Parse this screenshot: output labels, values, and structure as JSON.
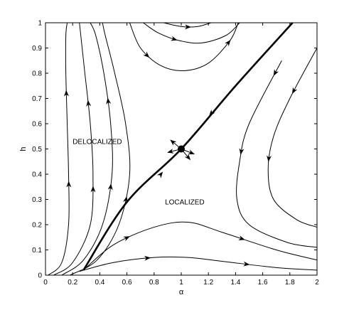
{
  "chart_data": {
    "type": "line",
    "title": "",
    "xlabel": "α",
    "ylabel": "h",
    "xlim": [
      0,
      2
    ],
    "ylim": [
      0,
      1
    ],
    "xticks": [
      "0",
      "0.2",
      "0.4",
      "0.6",
      "0.8",
      "1",
      "1.2",
      "1.4",
      "1.6",
      "1.8",
      "2"
    ],
    "yticks": [
      "0",
      "0.1",
      "0.2",
      "0.3",
      "0.4",
      "0.5",
      "0.6",
      "0.7",
      "0.8",
      "0.9",
      "1"
    ],
    "grid": false,
    "legend": "none",
    "annotations": [
      {
        "text": "DELOCALIZED",
        "x": 0.2,
        "y": 0.52
      },
      {
        "text": "LOCALIZED",
        "x": 0.88,
        "y": 0.28
      }
    ],
    "fixed_point": {
      "x": 1.0,
      "y": 0.5
    },
    "separatrix": {
      "x": [
        0.28,
        0.6,
        1.0,
        1.4,
        1.82
      ],
      "y": [
        0.02,
        0.29,
        0.5,
        0.75,
        1.0
      ]
    },
    "flow_lines": [
      {
        "x": [
          0.02,
          0.12,
          0.17,
          0.17,
          0.16,
          0.15,
          0.15,
          0.16
        ],
        "y": [
          0.0,
          0.05,
          0.2,
          0.4,
          0.6,
          0.8,
          0.95,
          1.0
        ],
        "arrows": [
          0.36,
          0.72
        ]
      },
      {
        "x": [
          0.06,
          0.2,
          0.33,
          0.35,
          0.33,
          0.29,
          0.26,
          0.25
        ],
        "y": [
          0.0,
          0.05,
          0.2,
          0.4,
          0.6,
          0.8,
          0.95,
          1.0
        ],
        "arrows": [
          0.34,
          0.68
        ]
      },
      {
        "x": [
          0.12,
          0.28,
          0.42,
          0.49,
          0.48,
          0.43,
          0.37,
          0.33
        ],
        "y": [
          0.0,
          0.06,
          0.2,
          0.4,
          0.6,
          0.8,
          0.95,
          1.0
        ],
        "arrows": [
          0.35,
          0.69
        ]
      },
      {
        "x": [
          0.18,
          0.38,
          0.54,
          0.62,
          0.59,
          0.51,
          0.44,
          0.42
        ],
        "y": [
          0.0,
          0.06,
          0.2,
          0.4,
          0.6,
          0.8,
          0.95,
          1.0
        ],
        "arrows": [
          0.3
        ]
      },
      {
        "x": [
          0.28,
          0.5,
          0.8,
          1.05,
          1.3,
          1.7,
          2.0
        ],
        "y": [
          0.02,
          0.12,
          0.19,
          0.21,
          0.17,
          0.1,
          0.06
        ],
        "arrows": [
          0.6,
          1.45
        ]
      },
      {
        "x": [
          0.25,
          0.5,
          0.8,
          1.05,
          1.3,
          1.7,
          2.0
        ],
        "y": [
          0.015,
          0.05,
          0.07,
          0.07,
          0.055,
          0.03,
          0.02
        ],
        "arrows": [
          0.75,
          1.48
        ]
      },
      {
        "x": [
          0.62,
          0.7,
          0.85,
          1.02,
          1.2,
          1.36,
          1.42
        ],
        "y": [
          1.0,
          0.9,
          0.83,
          0.81,
          0.84,
          0.93,
          1.0
        ],
        "arrows": [
          0.75,
          1.35
        ]
      },
      {
        "x": [
          0.72,
          0.83,
          0.98,
          1.15,
          1.33,
          1.43
        ],
        "y": [
          1.0,
          0.96,
          0.93,
          0.92,
          0.95,
          1.0
        ],
        "arrows": [
          0.95
        ]
      },
      {
        "x": [
          0.87,
          1.0,
          1.12,
          1.22
        ],
        "y": [
          1.0,
          0.985,
          0.985,
          1.0
        ],
        "arrows": [
          1.05
        ]
      },
      {
        "x": [
          1.74,
          1.5,
          1.43,
          1.41,
          1.5,
          1.78,
          2.0
        ],
        "y": [
          0.85,
          0.6,
          0.45,
          0.3,
          0.2,
          0.13,
          0.11
        ],
        "arrows": [
          0.8,
          0.49
        ]
      },
      {
        "x": [
          2.0,
          1.8,
          1.68,
          1.64,
          1.68,
          1.85,
          2.0
        ],
        "y": [
          0.9,
          0.7,
          0.55,
          0.42,
          0.3,
          0.22,
          0.19
        ],
        "arrows": [
          0.73,
          0.46
        ]
      }
    ]
  }
}
